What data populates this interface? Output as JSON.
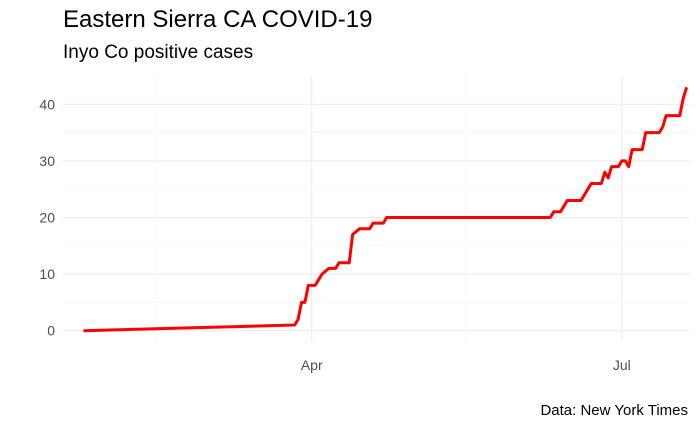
{
  "chart_data": {
    "type": "line",
    "title": "Eastern Sierra CA COVID-19",
    "subtitle": "Inyo Co positive cases",
    "caption": "Data: New York Times",
    "xlabel": "",
    "ylabel": "",
    "x_ticks": [
      "Apr",
      "Jul"
    ],
    "y_ticks": [
      0,
      10,
      20,
      30,
      40
    ],
    "ylim": [
      -2,
      45
    ],
    "xlim": [
      "2020-01-19",
      "2020-07-21"
    ],
    "grid": true,
    "legend": "none",
    "line_color": "#ff0000",
    "series": [
      {
        "x": [
          "2020-01-25",
          "2020-03-27",
          "2020-03-28",
          "2020-03-29",
          "2020-03-30",
          "2020-03-31",
          "2020-04-01",
          "2020-04-02",
          "2020-04-03",
          "2020-04-04",
          "2020-04-06",
          "2020-04-07",
          "2020-04-08",
          "2020-04-09",
          "2020-04-10",
          "2020-04-12",
          "2020-04-13",
          "2020-04-15",
          "2020-04-16",
          "2020-04-17",
          "2020-04-18",
          "2020-04-19",
          "2020-04-20",
          "2020-04-22",
          "2020-04-23",
          "2020-04-25",
          "2020-04-26",
          "2020-04-27",
          "2020-04-28",
          "2020-04-29",
          "2020-06-10",
          "2020-06-11",
          "2020-06-12",
          "2020-06-13",
          "2020-06-14",
          "2020-06-15",
          "2020-06-16",
          "2020-06-18",
          "2020-06-19",
          "2020-06-20",
          "2020-06-21",
          "2020-06-22",
          "2020-06-23",
          "2020-06-24",
          "2020-06-25",
          "2020-06-26",
          "2020-06-27",
          "2020-06-28",
          "2020-06-29",
          "2020-06-30",
          "2020-07-01",
          "2020-07-02",
          "2020-07-03",
          "2020-07-04",
          "2020-07-05",
          "2020-07-06",
          "2020-07-07",
          "2020-07-08",
          "2020-07-09",
          "2020-07-10",
          "2020-07-11",
          "2020-07-12",
          "2020-07-13",
          "2020-07-14",
          "2020-07-15",
          "2020-07-16",
          "2020-07-17",
          "2020-07-18",
          "2020-07-19",
          "2020-07-20"
        ],
        "values": [
          0,
          1,
          2,
          5,
          5,
          8,
          8,
          8,
          9,
          10,
          11,
          11,
          11,
          12,
          12,
          12,
          17,
          18,
          18,
          18,
          18,
          19,
          19,
          19,
          20,
          20,
          20,
          20,
          20,
          20,
          20,
          21,
          21,
          21,
          22,
          23,
          23,
          23,
          23,
          24,
          25,
          26,
          26,
          26,
          26,
          28,
          27,
          29,
          29,
          29,
          30,
          30,
          29,
          32,
          32,
          32,
          32,
          35,
          35,
          35,
          35,
          35,
          36,
          38,
          38,
          38,
          38,
          38,
          41,
          43
        ]
      }
    ]
  }
}
